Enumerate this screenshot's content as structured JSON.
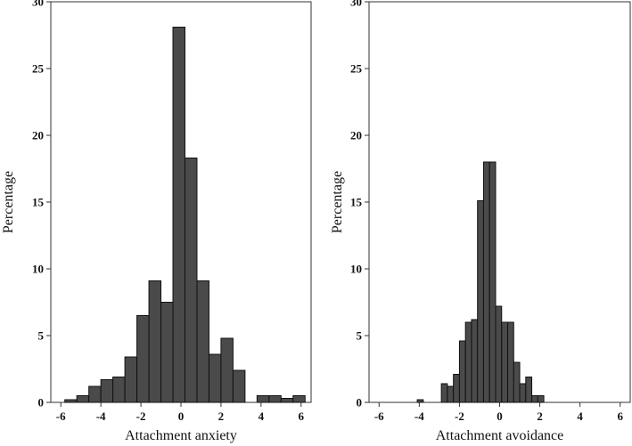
{
  "colors": {
    "bar_fill": "#4a4a4a",
    "bar_stroke": "#111111",
    "axis": "#333333"
  },
  "chart_data": [
    {
      "type": "bar",
      "xlabel": "Attachment anxiety",
      "ylabel": "Percentage",
      "xlim": [
        -6.5,
        6.5
      ],
      "ylim": [
        0,
        30
      ],
      "xticks": [
        -6,
        -4,
        -2,
        0,
        2,
        4,
        6
      ],
      "yticks": [
        0,
        5,
        10,
        15,
        20,
        25,
        30
      ],
      "bin_width": 0.6,
      "bin_left_edges": [
        -5.8,
        -5.2,
        -4.6,
        -4.0,
        -3.4,
        -2.8,
        -2.2,
        -1.6,
        -1.0,
        -0.4,
        0.2,
        0.8,
        1.4,
        2.0,
        2.6,
        3.2,
        3.8,
        4.4,
        5.0,
        5.6
      ],
      "values": [
        0.2,
        0.5,
        1.2,
        1.7,
        1.9,
        3.4,
        6.5,
        9.1,
        7.5,
        28.1,
        18.3,
        9.1,
        3.6,
        4.8,
        2.4,
        0,
        0.5,
        0.5,
        0.3,
        0.5
      ]
    },
    {
      "type": "bar",
      "xlabel": "Attachment avoidance",
      "ylabel": "Percentage",
      "xlim": [
        -6.5,
        6.5
      ],
      "ylim": [
        0,
        30
      ],
      "xticks": [
        -6,
        -4,
        -2,
        0,
        2,
        4,
        6
      ],
      "yticks": [
        0,
        5,
        10,
        15,
        20,
        25,
        30
      ],
      "bin_width": 0.3,
      "bin_left_edges": [
        -4.1,
        -3.8,
        -3.5,
        -3.2,
        -2.9,
        -2.6,
        -2.3,
        -2.0,
        -1.7,
        -1.4,
        -1.1,
        -0.8,
        -0.5,
        -0.2,
        0.1,
        0.4,
        0.7,
        1.0,
        1.3,
        1.6,
        1.9,
        2.2,
        2.5,
        2.8,
        3.1
      ],
      "values": [
        0.2,
        0,
        0,
        0,
        1.4,
        1.2,
        2.1,
        4.6,
        6.0,
        6.2,
        15.1,
        18.0,
        18.0,
        7.2,
        6.0,
        6.0,
        3.0,
        1.4,
        1.9,
        0.5,
        0.5,
        0,
        0,
        0,
        0
      ]
    }
  ]
}
